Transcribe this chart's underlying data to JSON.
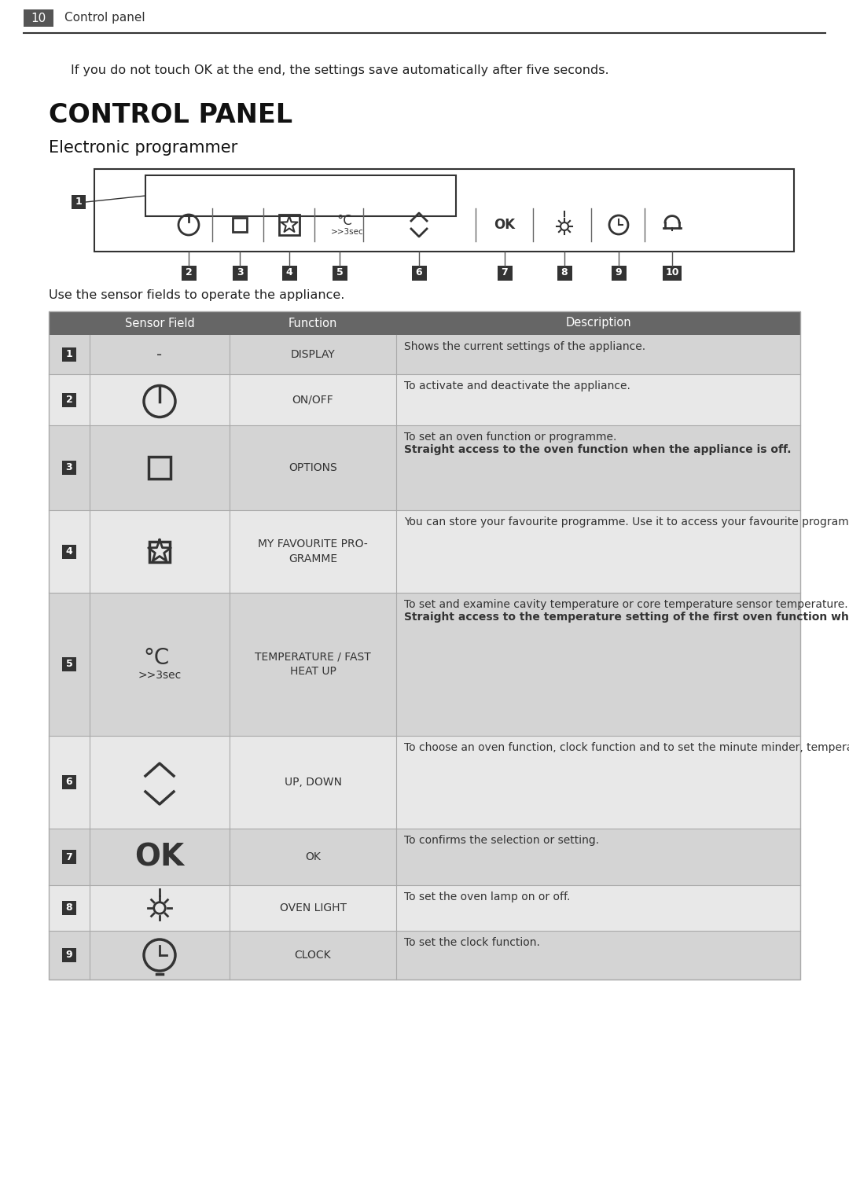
{
  "page_num": "10",
  "page_header": "Control panel",
  "intro_text": "If you do not touch OK at the end, the settings save automatically after five seconds.",
  "title": "CONTROL PANEL",
  "subtitle": "Electronic programmer",
  "table_intro": "Use the sensor fields to operate the appliance.",
  "header_bg": "#666666",
  "header_text_color": "#ffffff",
  "row_bg_odd": "#d4d4d4",
  "row_bg_even": "#e8e8e8",
  "num_badge_color": "#333333",
  "num_badge_text_color": "#ffffff",
  "rows": [
    {
      "num": "1",
      "function": "DISPLAY",
      "description": "Shows the current settings of the appliance.",
      "symbol": "-"
    },
    {
      "num": "2",
      "function": "ON/OFF",
      "description": "To activate and deactivate the appliance.",
      "symbol": "onoff"
    },
    {
      "num": "3",
      "function": "OPTIONS",
      "description_normal": "To set an oven function or programme.",
      "description_bold": "Straight access to the oven function when the appliance is off.",
      "symbol": "square"
    },
    {
      "num": "4",
      "function": "MY FAVOURITE PRO-\nGRAMME",
      "description": "You can store your favourite programme. Use it to access your favourite programme directly, al-so when the appliance is off.",
      "symbol": "star"
    },
    {
      "num": "5",
      "function": "TEMPERATURE / FAST\nHEAT UP",
      "description_normal": "To set and examine cavity temperature or core temperature sensor temperature. If you press it and hold for three seconds, it turns Fast heat up function ON and OFF.",
      "description_bold": "Straight access to the temperature setting of the first oven function when the appliance is off.",
      "symbol": "temp"
    },
    {
      "num": "6",
      "function": "UP, DOWN",
      "description": "To choose an oven function, clock function and to set the minute minder, temperature or time of day.",
      "symbol": "updown"
    },
    {
      "num": "7",
      "function": "OK",
      "description": "To confirms the selection or setting.",
      "symbol": "ok"
    },
    {
      "num": "8",
      "function": "OVEN LIGHT",
      "description": "To set the oven lamp on or off.",
      "symbol": "light"
    },
    {
      "num": "9",
      "function": "CLOCK",
      "description": "To set the clock function.",
      "symbol": "clock"
    }
  ]
}
